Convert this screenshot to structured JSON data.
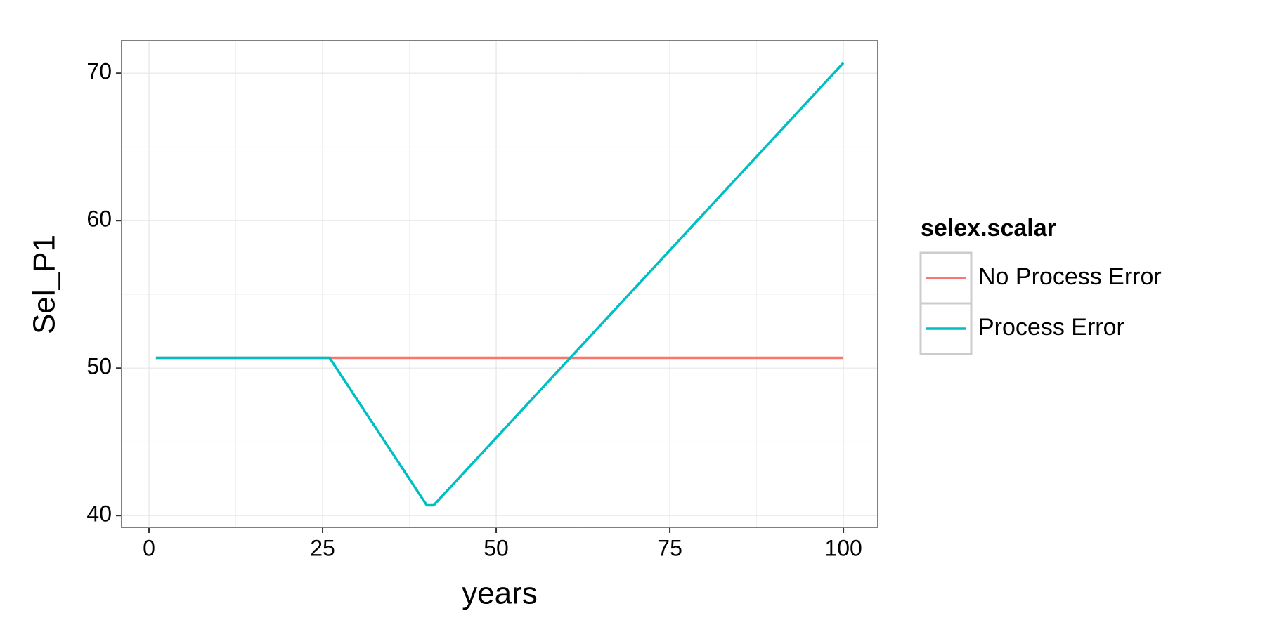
{
  "chart_data": {
    "type": "line",
    "x_label": "years",
    "y_label": "Sel_P1",
    "legend_title": "selex.scalar",
    "legend": "right",
    "grid": true,
    "xlim": [
      -3.95,
      104.95
    ],
    "xticks": [
      0,
      25,
      50,
      75,
      100
    ],
    "x_minor_ticks": [
      12.5,
      37.5,
      62.5,
      87.5
    ],
    "ylim": [
      39.2,
      72.2
    ],
    "yticks": [
      40,
      50,
      60,
      70
    ],
    "y_minor_ticks": [
      45,
      55,
      65
    ],
    "series": [
      {
        "name": "No Process Error",
        "color": "#F8766D",
        "x": [
          1,
          100
        ],
        "values": [
          50.7,
          50.7
        ]
      },
      {
        "name": "Process Error",
        "color": "#00BFC4",
        "x": [
          1,
          26,
          40,
          41,
          100
        ],
        "values": [
          50.7,
          50.7,
          40.7,
          40.7,
          70.7
        ]
      }
    ]
  }
}
